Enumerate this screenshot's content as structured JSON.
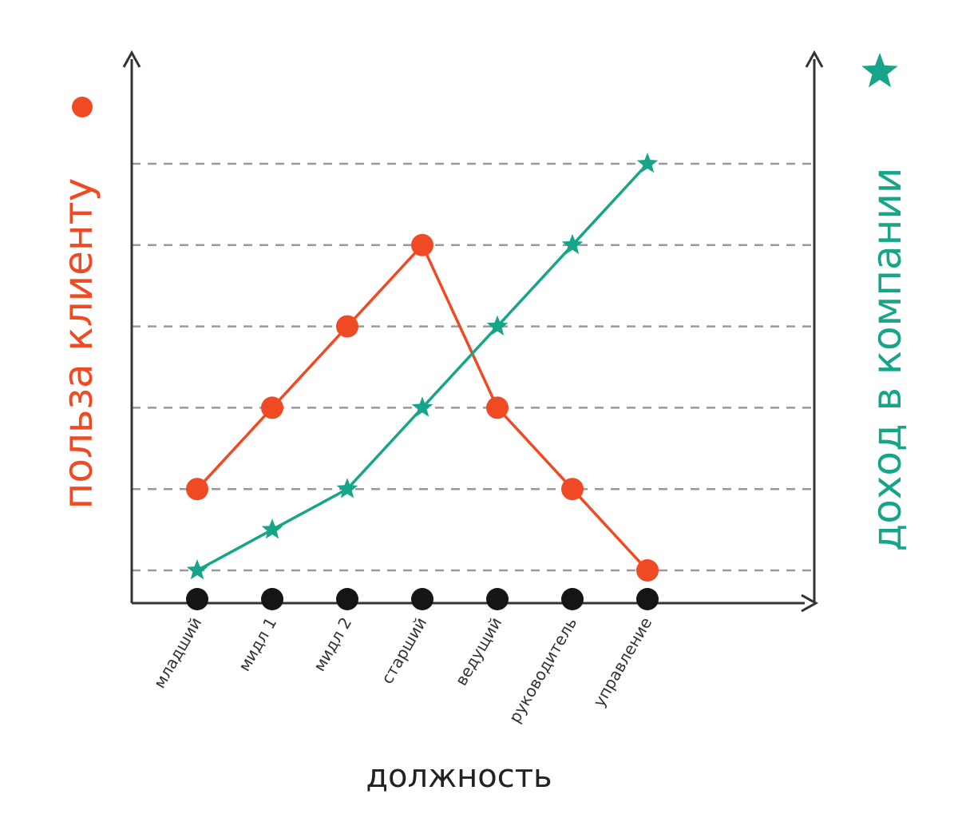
{
  "chart_data": {
    "type": "line",
    "categories": [
      "младший",
      "мидл 1",
      "мидл 2",
      "старший",
      "ведущий",
      "руководитель",
      "управление"
    ],
    "xlabel": "должность",
    "ylabel_left": "польза клиенту",
    "ylabel_right": "доход в компании",
    "ylim": [
      0,
      6
    ],
    "grid": true,
    "series": [
      {
        "id": "benefit",
        "values": [
          1,
          2,
          3,
          4,
          2,
          1,
          0
        ],
        "marker": "circle",
        "color": "#ef4a24",
        "axis": "left"
      },
      {
        "id": "income",
        "values": [
          0,
          0.5,
          1,
          2,
          3,
          4,
          5
        ],
        "marker": "star",
        "color": "#17a589",
        "axis": "right"
      }
    ],
    "colors": {
      "axis": "#333333",
      "grid": "#9a9a9a",
      "category_marker": "#151515",
      "label": "#333333",
      "x_title": "#222222"
    }
  }
}
